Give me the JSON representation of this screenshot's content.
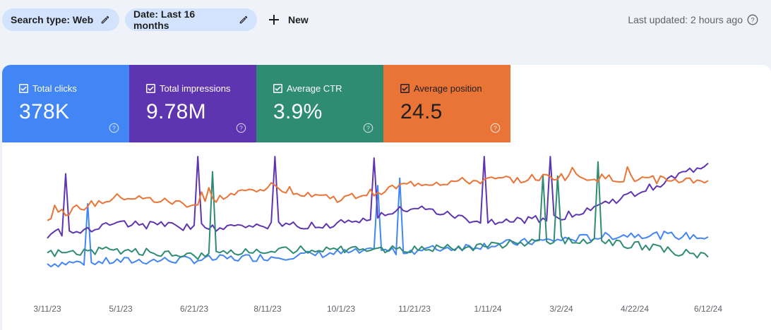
{
  "filters": {
    "search_type": "Search type: Web",
    "date": "Date: Last 16 months",
    "new_label": "New",
    "edit_icon": "pencil-icon"
  },
  "last_updated": "Last updated: 2 hours ago",
  "metrics": [
    {
      "label": "Total clicks",
      "value": "378K",
      "color": "#4285f4",
      "checked": true
    },
    {
      "label": "Total impressions",
      "value": "9.78M",
      "color": "#5e35b1",
      "checked": true
    },
    {
      "label": "Average CTR",
      "value": "3.9%",
      "color": "#2e8b74",
      "checked": true
    },
    {
      "label": "Average position",
      "value": "24.5",
      "color": "#ea7336",
      "checked": true
    }
  ],
  "chart_data": {
    "type": "line",
    "x": [
      "3/11/23",
      "5/1/23",
      "6/21/23",
      "8/11/23",
      "10/1/23",
      "11/21/23",
      "1/11/24",
      "3/2/24",
      "4/22/24",
      "6/12/24"
    ],
    "series": [
      {
        "name": "Total clicks",
        "color": "#4285f4",
        "values": [
          20,
          22,
          23,
          25,
          28,
          30,
          34,
          38,
          42,
          40
        ]
      },
      {
        "name": "Total impressions",
        "color": "#5e35b1",
        "values": [
          42,
          50,
          47,
          48,
          50,
          62,
          50,
          55,
          72,
          95
        ]
      },
      {
        "name": "Average CTR",
        "color": "#2e8b74",
        "values": [
          28,
          30,
          26,
          30,
          31,
          31,
          33,
          38,
          34,
          25
        ]
      },
      {
        "name": "Average position",
        "color": "#ea7336",
        "values": [
          55,
          70,
          64,
          78,
          68,
          80,
          82,
          85,
          83,
          82
        ]
      }
    ],
    "grid": false,
    "legend": "none"
  }
}
